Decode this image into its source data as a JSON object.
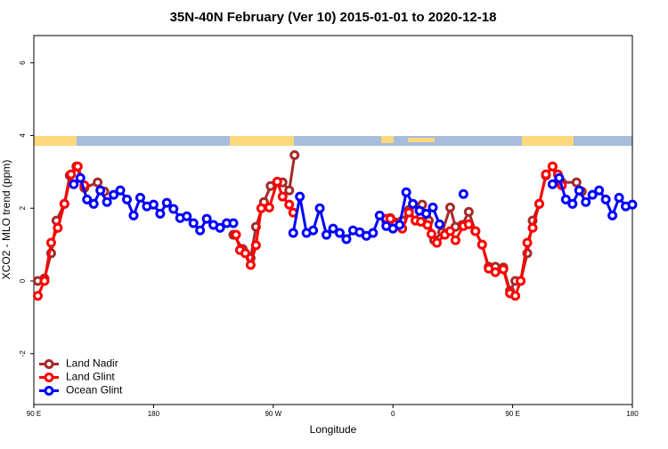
{
  "chart_data": {
    "type": "line",
    "title": "35N-40N February (Ver 10)   2015-01-01 to 2020-12-18",
    "x_label": "Longitude",
    "y_label": "XCO2 - MLO trend (ppm)",
    "xlim": [
      90,
      540
    ],
    "ylim": [
      -3.4,
      6.75
    ],
    "xticks": [
      {
        "value": 90,
        "label": "90 E"
      },
      {
        "value": 180,
        "label": "180"
      },
      {
        "value": 270,
        "label": "90 W"
      },
      {
        "value": 360,
        "label": "0"
      },
      {
        "value": 450,
        "label": "90 E"
      },
      {
        "value": 540,
        "label": "180"
      }
    ],
    "yticks": [
      -2,
      0,
      2,
      4,
      6
    ],
    "legend": "bottomleft",
    "series": [
      {
        "name": "Land Nadir",
        "color": "#a52a2a",
        "x": [
          93,
          98,
          103,
          107,
          113,
          117,
          122,
          128,
          138,
          143,
          null,
          240,
          247,
          253,
          257,
          263,
          268,
          273,
          277,
          282,
          286,
          null,
          355,
          358,
          362,
          367,
          372,
          377,
          382,
          387,
          391,
          397,
          403,
          407,
          412,
          417,
          422,
          427,
          432,
          437,
          443,
          448,
          452,
          456,
          461,
          465,
          470,
          475,
          480,
          484,
          487,
          498,
          502
        ],
        "values": [
          0.0,
          0.07,
          0.76,
          1.66,
          2.12,
          2.9,
          3.15,
          2.56,
          2.71,
          2.46,
          null,
          1.27,
          0.88,
          0.63,
          1.49,
          2.17,
          2.61,
          2.73,
          2.71,
          2.49,
          3.46,
          null,
          1.63,
          1.73,
          1.61,
          1.66,
          1.95,
          1.66,
          2.1,
          1.66,
          1.12,
          1.34,
          2.02,
          1.49,
          1.54,
          1.9,
          1.37,
          1.0,
          0.39,
          0.39,
          0.37,
          -0.27,
          0.0,
          0.0,
          0.76,
          1.66,
          2.12,
          2.9,
          3.15,
          2.73,
          2.71,
          2.71,
          2.46
        ]
      },
      {
        "name": "Land Glint",
        "color": "#ff0000",
        "x": [
          93,
          98,
          103,
          108,
          113,
          118,
          123,
          128,
          null,
          242,
          245,
          249,
          253,
          257,
          261,
          267,
          273,
          277,
          282,
          285,
          null,
          355,
          358,
          362,
          367,
          372,
          377,
          381,
          386,
          389,
          393,
          399,
          403,
          407,
          413,
          417,
          422,
          427,
          432,
          437,
          443,
          448,
          452,
          456,
          461,
          465,
          470,
          475,
          480,
          484,
          487
        ],
        "values": [
          -0.41,
          0.0,
          1.05,
          1.46,
          2.12,
          2.93,
          3.15,
          2.63,
          null,
          1.27,
          0.85,
          0.76,
          0.44,
          0.98,
          2.0,
          2.02,
          2.73,
          2.32,
          2.1,
          1.88,
          null,
          1.71,
          1.71,
          1.56,
          1.44,
          1.88,
          1.66,
          1.63,
          1.54,
          1.29,
          1.05,
          1.27,
          1.37,
          1.12,
          1.51,
          1.56,
          1.37,
          1.0,
          0.34,
          0.24,
          0.32,
          -0.34,
          -0.41,
          0.0,
          1.05,
          1.46,
          2.12,
          2.93,
          3.15,
          2.93,
          2.63
        ]
      },
      {
        "name": "Ocean Glint",
        "color": "#0000ff",
        "x": [
          120,
          125,
          130,
          135,
          140,
          145,
          150,
          155,
          160,
          165,
          170,
          175,
          180,
          185,
          190,
          195,
          200,
          205,
          210,
          215,
          220,
          225,
          230,
          235,
          240,
          null,
          285,
          290,
          295,
          300,
          305,
          310,
          315,
          320,
          325,
          330,
          335,
          340,
          345,
          350,
          355,
          360,
          365,
          370,
          375,
          380,
          385,
          390,
          395,
          null,
          413,
          null,
          480,
          485,
          490,
          495,
          500,
          505,
          510,
          515,
          520,
          525,
          530,
          535,
          540
        ],
        "values": [
          2.66,
          2.83,
          2.24,
          2.12,
          2.49,
          2.17,
          2.37,
          2.49,
          2.24,
          1.8,
          2.29,
          2.05,
          2.1,
          1.85,
          2.15,
          1.98,
          1.73,
          1.78,
          1.59,
          1.39,
          1.71,
          1.54,
          1.46,
          1.59,
          1.59,
          null,
          1.32,
          2.32,
          1.32,
          1.39,
          2.0,
          1.27,
          1.44,
          1.32,
          1.15,
          1.39,
          1.34,
          1.24,
          1.32,
          1.8,
          1.51,
          1.44,
          1.54,
          2.44,
          2.12,
          1.93,
          1.85,
          2.02,
          1.56,
          null,
          2.39,
          null,
          2.66,
          2.83,
          2.24,
          2.12,
          2.49,
          2.17,
          2.37,
          2.49,
          2.24,
          1.8,
          2.29,
          2.05,
          2.1
        ]
      }
    ]
  }
}
